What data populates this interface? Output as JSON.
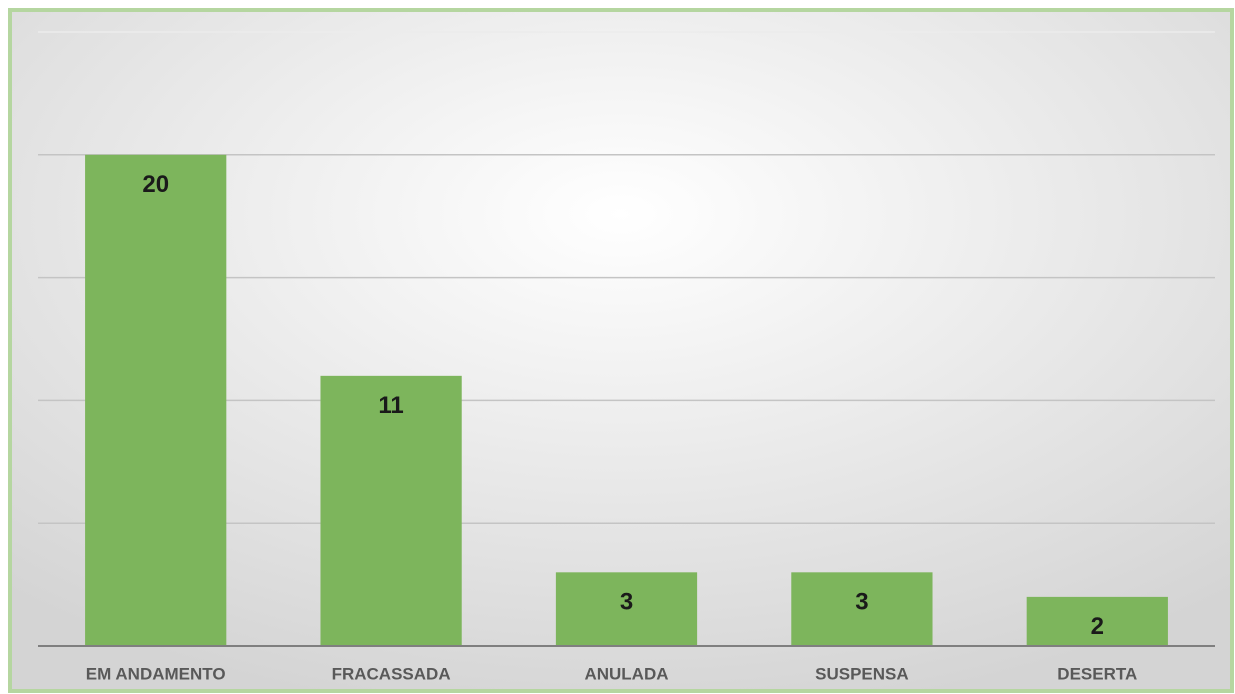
{
  "chart_data": {
    "type": "bar",
    "categories": [
      "EM ANDAMENTO",
      "FRACASSADA",
      "ANULADA",
      "SUSPENSA",
      "DESERTA"
    ],
    "values": [
      20,
      11,
      3,
      3,
      2
    ],
    "color": "#7db55c",
    "ylim": [
      0,
      25
    ],
    "yticks": [
      0,
      5,
      10,
      15,
      20,
      25
    ],
    "grid": true
  }
}
